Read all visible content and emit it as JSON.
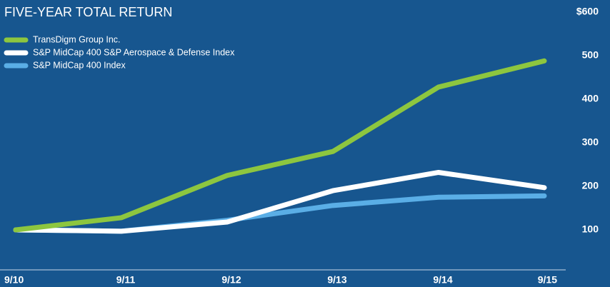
{
  "chart_data": {
    "type": "line",
    "title": "FIVE-YEAR TOTAL RETURN",
    "categories": [
      "9/10",
      "9/11",
      "9/12",
      "9/13",
      "9/14",
      "9/15"
    ],
    "series": [
      {
        "name": "TransDigm Group Inc.",
        "color": "#8dc63f",
        "values": [
          100,
          128,
          225,
          280,
          428,
          488
        ]
      },
      {
        "name": "S&P MidCap 400 S&P Aerospace & Defense Index",
        "color": "#ffffff",
        "values": [
          100,
          97,
          118,
          190,
          232,
          197
        ]
      },
      {
        "name": "S&P MidCap 400 Index",
        "color": "#5aaee6",
        "values": [
          100,
          97,
          122,
          156,
          175,
          178
        ]
      }
    ],
    "ylim": [
      0,
      600
    ],
    "yticks": [
      100,
      200,
      300,
      400,
      500,
      {
        "value": 600,
        "label": "$600"
      }
    ],
    "legend": "top-left"
  }
}
